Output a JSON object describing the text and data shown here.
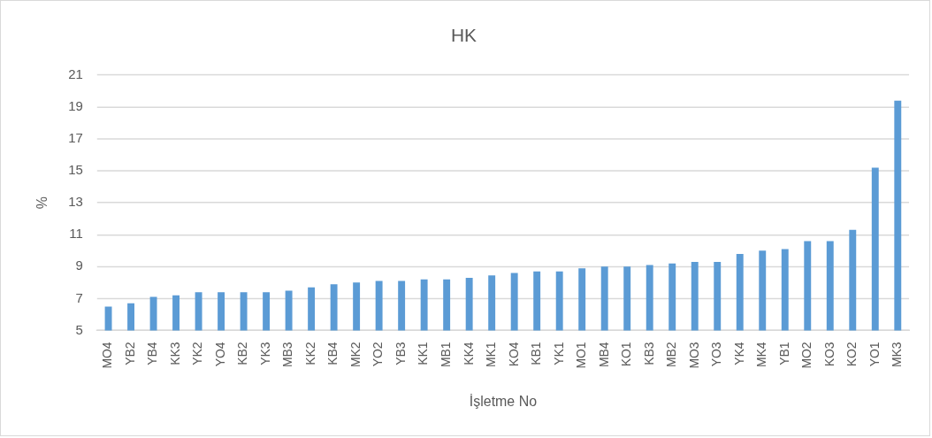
{
  "chart_data": {
    "type": "bar",
    "title": "HK",
    "xlabel": "İşletme No",
    "ylabel": "%",
    "categories": [
      "MO4",
      "YB2",
      "YB4",
      "KK3",
      "YK2",
      "YO4",
      "KB2",
      "YK3",
      "MB3",
      "KK2",
      "KB4",
      "MK2",
      "YO2",
      "YB3",
      "KK1",
      "MB1",
      "KK4",
      "MK1",
      "KO4",
      "KB1",
      "YK1",
      "MO1",
      "MB4",
      "KO1",
      "KB3",
      "MB2",
      "MO3",
      "YO3",
      "YK4",
      "MK4",
      "YB1",
      "MO2",
      "KO3",
      "KO2",
      "YO1",
      "MK3"
    ],
    "values": [
      6.5,
      6.7,
      7.1,
      7.2,
      7.4,
      7.4,
      7.4,
      7.4,
      7.5,
      7.7,
      7.9,
      8.0,
      8.1,
      8.1,
      8.2,
      8.2,
      8.3,
      8.45,
      8.6,
      8.7,
      8.7,
      8.9,
      9.0,
      9.0,
      9.1,
      9.2,
      9.3,
      9.3,
      9.8,
      10.0,
      10.1,
      10.6,
      10.6,
      11.3,
      15.2,
      19.4
    ],
    "color": "#5b9bd5",
    "ylim": [
      5,
      21
    ],
    "yticks": [
      5,
      7,
      9,
      11,
      13,
      15,
      17,
      19,
      21
    ],
    "grid": "y"
  }
}
